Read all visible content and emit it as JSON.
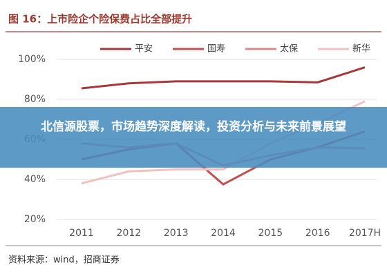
{
  "chart_data": {
    "type": "line",
    "title": "图 16：上市险企个险保费占比全部提升",
    "categories": [
      "2011",
      "2012",
      "2013",
      "2014",
      "2015",
      "2016",
      "2017H"
    ],
    "series": [
      {
        "name": "平安",
        "color": "#a8373a",
        "values": [
          85.5,
          88,
          89,
          89,
          89,
          88.5,
          96
        ]
      },
      {
        "name": "国寿",
        "color": "#c0504d",
        "values": [
          50,
          55,
          58,
          37.5,
          50,
          56,
          64
        ]
      },
      {
        "name": "太保",
        "color": "#d7898b",
        "values": [
          58,
          56,
          58,
          47,
          52,
          56,
          55.5
        ]
      },
      {
        "name": "新华",
        "color": "#f2c0c0",
        "values": [
          38,
          44,
          45,
          45,
          58,
          68,
          79
        ]
      }
    ],
    "ylim": [
      20,
      100
    ],
    "yticks": [
      {
        "value": 20,
        "label": "20%"
      },
      {
        "value": 40,
        "label": "40%"
      },
      {
        "value": 60,
        "label": "60%"
      },
      {
        "value": 80,
        "label": "80%"
      },
      {
        "value": 100,
        "label": "100%"
      }
    ],
    "grid": true,
    "source": "资料来源：wind，招商证券"
  },
  "banner": "北信源股票，市场趋势深度解读，投资分析与未来前景展望"
}
